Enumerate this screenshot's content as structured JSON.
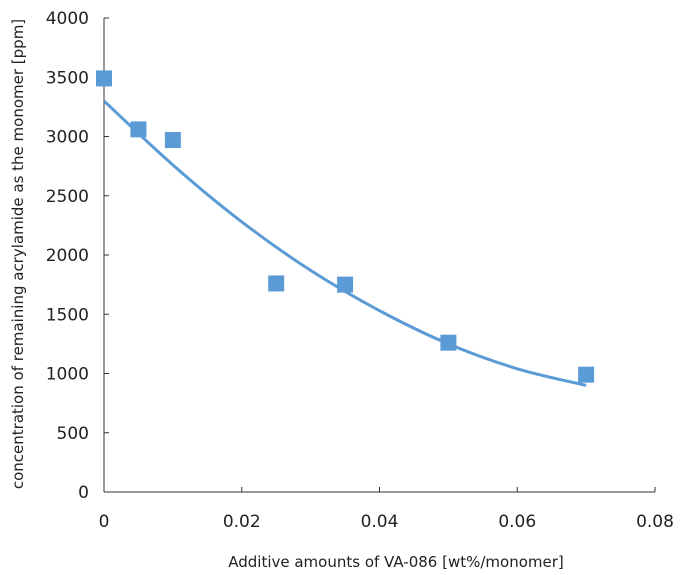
{
  "chart_data": {
    "type": "scatter",
    "xlabel": "Additive amounts of VA-086 [wt%/monomer]",
    "ylabel": "concentration of remaining acrylamide as the monomer [ppm]",
    "xlim": [
      0,
      0.08
    ],
    "ylim": [
      0,
      4000
    ],
    "x_ticks": [
      "0",
      "0.02",
      "0.04",
      "0.06",
      "0.08"
    ],
    "y_ticks": [
      "0",
      "500",
      "1000",
      "1500",
      "2000",
      "2500",
      "3000",
      "3500",
      "4000"
    ],
    "grid": false,
    "legend": "none",
    "series": [
      {
        "type": "scatter",
        "marker": "square",
        "color": "#5b9bd5",
        "x": [
          0,
          0.005,
          0.01,
          0.025,
          0.035,
          0.05,
          0.07
        ],
        "y": [
          3490,
          3060,
          2970,
          1760,
          1750,
          1260,
          990
        ]
      },
      {
        "type": "line",
        "color": "#5b9bd5",
        "x": [
          0,
          0.01,
          0.02,
          0.03,
          0.04,
          0.05,
          0.06,
          0.07
        ],
        "y": [
          3300,
          2760,
          2280,
          1870,
          1530,
          1250,
          1040,
          900
        ]
      }
    ]
  }
}
